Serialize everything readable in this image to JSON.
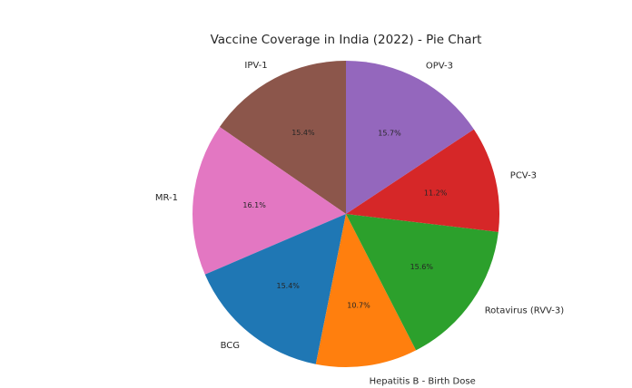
{
  "chart_data": {
    "type": "pie",
    "title": "Vaccine Coverage in India (2022) - Pie Chart",
    "start_angle_deg": 90,
    "direction": "counterclockwise",
    "slices": [
      {
        "label": "IPV-1",
        "value": 15.4,
        "pct_label": "15.4%",
        "color": "#8c564b"
      },
      {
        "label": "MR-1",
        "value": 16.1,
        "pct_label": "16.1%",
        "color": "#e377c2"
      },
      {
        "label": "BCG",
        "value": 15.4,
        "pct_label": "15.4%",
        "color": "#1f77b4"
      },
      {
        "label": "Hepatitis B - Birth Dose",
        "value": 10.7,
        "pct_label": "10.7%",
        "color": "#ff7f0e"
      },
      {
        "label": "Rotavirus (RVV-3)",
        "value": 15.6,
        "pct_label": "15.6%",
        "color": "#2ca02c"
      },
      {
        "label": "PCV-3",
        "value": 11.2,
        "pct_label": "11.2%",
        "color": "#d62728"
      },
      {
        "label": "OPV-3",
        "value": 15.7,
        "pct_label": "15.7%",
        "color": "#9467bd"
      }
    ]
  }
}
